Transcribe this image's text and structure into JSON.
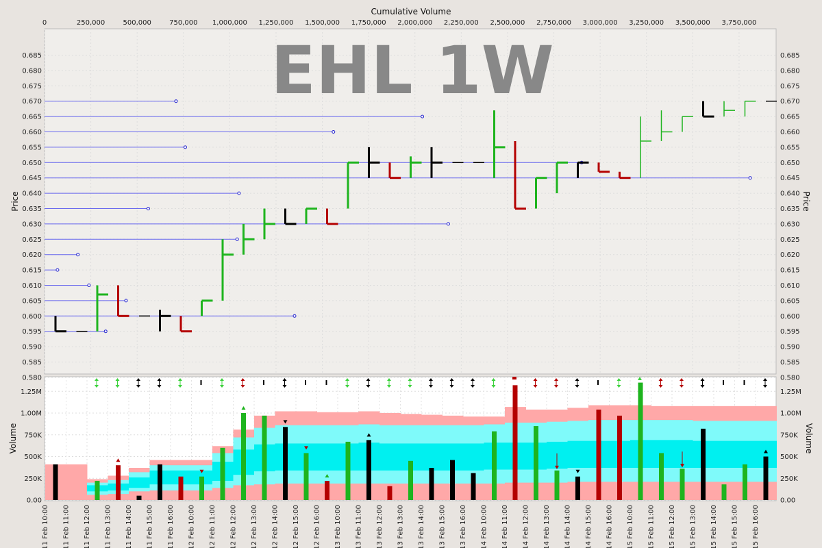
{
  "chart_data": [
    {
      "type": "bar",
      "subtype": "volume-at-price (equivolume cumulative)",
      "watermark": "EHL 1W",
      "top_axis_label": "Cumulative Volume",
      "ylabel": "Price",
      "ylim": [
        0.5755,
        0.6895
      ],
      "xlim": [
        0,
        3950000
      ],
      "x_ticks": [
        "0",
        "250,000",
        "500,000",
        "750,000",
        "1,000,000",
        "1,250,000",
        "1,500,000",
        "1,750,000",
        "2,000,000",
        "2,250,000",
        "2,500,000",
        "2,750,000",
        "3,000,000",
        "3,250,000",
        "3,500,000",
        "3,750,000"
      ],
      "x_tick_values": [
        0,
        250000,
        500000,
        750000,
        1000000,
        1250000,
        1500000,
        1750000,
        2000000,
        2250000,
        2500000,
        2750000,
        3000000,
        3250000,
        3500000,
        3750000
      ],
      "y_ticks": [
        "0.685",
        "0.680",
        "0.675",
        "0.670",
        "0.665",
        "0.660",
        "0.655",
        "0.650",
        "0.645",
        "0.640",
        "0.635",
        "0.630",
        "0.625",
        "0.620",
        "0.615",
        "0.610",
        "0.605",
        "0.600",
        "0.595",
        "0.590",
        "0.585",
        "0.580"
      ],
      "y_tick_values": [
        0.685,
        0.68,
        0.675,
        0.67,
        0.665,
        0.66,
        0.655,
        0.65,
        0.645,
        0.64,
        0.635,
        0.63,
        0.625,
        0.62,
        0.615,
        0.61,
        0.605,
        0.6,
        0.595,
        0.59,
        0.585,
        0.58
      ],
      "volume_at_price": [
        {
          "price": 0.67,
          "volume": 710000
        },
        {
          "price": 0.665,
          "volume": 2040000
        },
        {
          "price": 0.66,
          "volume": 1560000
        },
        {
          "price": 0.655,
          "volume": 760000
        },
        {
          "price": 0.65,
          "volume": 2900000
        },
        {
          "price": 0.645,
          "volume": 3810000
        },
        {
          "price": 0.64,
          "volume": 1050000
        },
        {
          "price": 0.635,
          "volume": 560000
        },
        {
          "price": 0.63,
          "volume": 2180000
        },
        {
          "price": 0.625,
          "volume": 1040000
        },
        {
          "price": 0.62,
          "volume": 180000
        },
        {
          "price": 0.615,
          "volume": 70000
        },
        {
          "price": 0.61,
          "volume": 240000
        },
        {
          "price": 0.605,
          "volume": 440000
        },
        {
          "price": 0.6,
          "volume": 1350000
        },
        {
          "price": 0.595,
          "volume": 330000
        }
      ]
    },
    {
      "type": "bar",
      "ylabel": "Volume",
      "ylim": [
        0,
        1400000
      ],
      "y_ticks": [
        "0.00",
        "250K",
        "500K",
        "750K",
        "1.00M",
        "1.25M"
      ],
      "y_tick_values": [
        0,
        250000,
        500000,
        750000,
        1000000,
        1250000
      ],
      "categories": [
        "11 Feb 10:00",
        "11 Feb 11:00",
        "11 Feb 12:00",
        "11 Feb 13:00",
        "11 Feb 14:00",
        "11 Feb 15:00",
        "11 Feb 16:00",
        "12 Feb 10:00",
        "12 Feb 11:00",
        "12 Feb 12:00",
        "12 Feb 13:00",
        "12 Feb 14:00",
        "12 Feb 15:00",
        "12 Feb 16:00",
        "13 Feb 10:00",
        "13 Feb 11:00",
        "13 Feb 12:00",
        "13 Feb 13:00",
        "13 Feb 14:00",
        "13 Feb 15:00",
        "13 Feb 16:00",
        "14 Feb 10:00",
        "14 Feb 11:00",
        "14 Feb 12:00",
        "14 Feb 13:00",
        "14 Feb 14:00",
        "14 Feb 15:00",
        "14 Feb 16:00",
        "15 Feb 10:00",
        "15 Feb 11:00",
        "15 Feb 12:00",
        "15 Feb 13:00",
        "15 Feb 14:00",
        "15 Feb 15:00",
        "15 Feb 16:00"
      ],
      "price_bars": [
        {
          "open": 0.6,
          "high": 0.6,
          "low": 0.595,
          "close": 0.595,
          "color": "black"
        },
        {
          "open": 0.595,
          "high": 0.595,
          "low": 0.595,
          "close": 0.595,
          "color": "black"
        },
        {
          "open": 0.595,
          "high": 0.61,
          "low": 0.595,
          "close": 0.607,
          "color": "green"
        },
        {
          "open": 0.61,
          "high": 0.61,
          "low": 0.6,
          "close": 0.6,
          "color": "red"
        },
        {
          "open": 0.6,
          "high": 0.6,
          "low": 0.6,
          "close": 0.6,
          "color": "black"
        },
        {
          "open": 0.6,
          "high": 0.602,
          "low": 0.595,
          "close": 0.6,
          "color": "black"
        },
        {
          "open": 0.6,
          "high": 0.6,
          "low": 0.595,
          "close": 0.595,
          "color": "red"
        },
        {
          "open": 0.6,
          "high": 0.605,
          "low": 0.6,
          "close": 0.605,
          "color": "green"
        },
        {
          "open": 0.605,
          "high": 0.625,
          "low": 0.605,
          "close": 0.62,
          "color": "green"
        },
        {
          "open": 0.62,
          "high": 0.63,
          "low": 0.62,
          "close": 0.625,
          "color": "green"
        },
        {
          "open": 0.625,
          "high": 0.635,
          "low": 0.625,
          "close": 0.63,
          "color": "green"
        },
        {
          "open": 0.635,
          "high": 0.635,
          "low": 0.63,
          "close": 0.63,
          "color": "black"
        },
        {
          "open": 0.63,
          "high": 0.635,
          "low": 0.63,
          "close": 0.635,
          "color": "green"
        },
        {
          "open": 0.635,
          "high": 0.635,
          "low": 0.63,
          "close": 0.63,
          "color": "red"
        },
        {
          "open": 0.635,
          "high": 0.65,
          "low": 0.635,
          "close": 0.65,
          "color": "green"
        },
        {
          "open": 0.655,
          "high": 0.655,
          "low": 0.645,
          "close": 0.65,
          "color": "black"
        },
        {
          "open": 0.65,
          "high": 0.65,
          "low": 0.645,
          "close": 0.645,
          "color": "red"
        },
        {
          "open": 0.645,
          "high": 0.652,
          "low": 0.645,
          "close": 0.65,
          "color": "green"
        },
        {
          "open": 0.645,
          "high": 0.655,
          "low": 0.645,
          "close": 0.65,
          "color": "black"
        },
        {
          "open": 0.65,
          "high": 0.65,
          "low": 0.65,
          "close": 0.65,
          "color": "black"
        },
        {
          "open": 0.65,
          "high": 0.65,
          "low": 0.65,
          "close": 0.65,
          "color": "black"
        },
        {
          "open": 0.65,
          "high": 0.667,
          "low": 0.645,
          "close": 0.655,
          "color": "green"
        },
        {
          "open": 0.657,
          "high": 0.657,
          "low": 0.635,
          "close": 0.635,
          "color": "red"
        },
        {
          "open": 0.635,
          "high": 0.645,
          "low": 0.635,
          "close": 0.645,
          "color": "green"
        },
        {
          "open": 0.64,
          "high": 0.65,
          "low": 0.64,
          "close": 0.65,
          "color": "green"
        },
        {
          "open": 0.645,
          "high": 0.65,
          "low": 0.645,
          "close": 0.65,
          "color": "black"
        },
        {
          "open": 0.65,
          "high": 0.65,
          "low": 0.647,
          "close": 0.647,
          "color": "red"
        },
        {
          "open": 0.647,
          "high": 0.647,
          "low": 0.645,
          "close": 0.645,
          "color": "red"
        },
        {
          "open": 0.645,
          "high": 0.665,
          "low": 0.645,
          "close": 0.657,
          "color": "green"
        },
        {
          "open": 0.657,
          "high": 0.667,
          "low": 0.657,
          "close": 0.66,
          "color": "green"
        },
        {
          "open": 0.66,
          "high": 0.665,
          "low": 0.66,
          "close": 0.665,
          "color": "green"
        },
        {
          "open": 0.67,
          "high": 0.67,
          "low": 0.665,
          "close": 0.665,
          "color": "black"
        },
        {
          "open": 0.667,
          "high": 0.67,
          "low": 0.665,
          "close": 0.667,
          "color": "green"
        },
        {
          "open": 0.665,
          "high": 0.67,
          "low": 0.665,
          "close": 0.67,
          "color": "green"
        },
        {
          "open": 0.67,
          "high": 0.67,
          "low": 0.67,
          "close": 0.67,
          "color": "black"
        }
      ],
      "volume": [
        410000,
        0,
        220000,
        400000,
        50000,
        410000,
        270000,
        270000,
        600000,
        1000000,
        970000,
        840000,
        540000,
        220000,
        670000,
        690000,
        160000,
        450000,
        370000,
        460000,
        310000,
        790000,
        1320000,
        850000,
        340000,
        270000,
        1040000,
        970000,
        1350000,
        540000,
        360000,
        820000,
        180000,
        410000,
        500000
      ],
      "volume_colors": [
        "black",
        "black",
        "green",
        "red",
        "black",
        "black",
        "red",
        "green",
        "green",
        "green",
        "green",
        "black",
        "green",
        "red",
        "green",
        "black",
        "red",
        "green",
        "black",
        "black",
        "black",
        "green",
        "red",
        "green",
        "green",
        "black",
        "red",
        "red",
        "green",
        "green",
        "green",
        "black",
        "green",
        "green",
        "black"
      ],
      "volume_markers": [
        "none",
        "none",
        "none",
        "up",
        "none",
        "none",
        "none",
        "down",
        "none",
        "up",
        "none",
        "down",
        "down",
        "up",
        "none",
        "up",
        "none",
        "none",
        "none",
        "none",
        "none",
        "none",
        "none",
        "none",
        "down-line",
        "down",
        "none",
        "none",
        "none",
        "none",
        "down-line",
        "none",
        "none",
        "none",
        "up"
      ],
      "marker_colors": [
        "",
        "",
        "",
        "red",
        "",
        "",
        "",
        "red",
        "",
        "green",
        "",
        "black",
        "red",
        "green",
        "",
        "black",
        "",
        "",
        "",
        "",
        "",
        "",
        "",
        "",
        "red",
        "black",
        "",
        "",
        "",
        "",
        "red",
        "",
        "",
        "",
        "black"
      ],
      "signals": [
        "none",
        "none",
        "both",
        "both",
        "both",
        "both",
        "both",
        "bar",
        "both",
        "both",
        "bar",
        "both",
        "bar",
        "bar",
        "both",
        "both",
        "both",
        "both",
        "both",
        "both",
        "both",
        "both",
        "stop",
        "both",
        "both",
        "both",
        "bar",
        "both",
        "up",
        "both",
        "both",
        "both",
        "bar",
        "bar",
        "both"
      ],
      "signal_colors": [
        "",
        "",
        "green",
        "green",
        "black",
        "black",
        "green",
        "black",
        "green",
        "red",
        "black",
        "black",
        "black",
        "black",
        "green",
        "black",
        "green",
        "green",
        "black",
        "black",
        "black",
        "green",
        "red",
        "red",
        "red",
        "black",
        "black",
        "green",
        "green",
        "red",
        "red",
        "black",
        "black",
        "black",
        "black"
      ],
      "band_outer_top": [
        410000,
        410000,
        240000,
        280000,
        370000,
        460000,
        460000,
        460000,
        620000,
        810000,
        970000,
        1020000,
        1020000,
        1010000,
        1010000,
        1020000,
        1000000,
        990000,
        980000,
        970000,
        960000,
        960000,
        1070000,
        1040000,
        1040000,
        1060000,
        1090000,
        1090000,
        1090000,
        1080000,
        1080000,
        1080000,
        1080000,
        1080000,
        1080000
      ],
      "band_inner_top": [
        0,
        0,
        200000,
        230000,
        320000,
        400000,
        400000,
        400000,
        540000,
        720000,
        830000,
        860000,
        860000,
        860000,
        860000,
        870000,
        860000,
        860000,
        860000,
        860000,
        860000,
        870000,
        890000,
        890000,
        900000,
        910000,
        920000,
        920000,
        920000,
        920000,
        920000,
        910000,
        910000,
        910000,
        910000
      ],
      "band_core_top": [
        0,
        0,
        170000,
        190000,
        260000,
        340000,
        340000,
        340000,
        440000,
        580000,
        640000,
        650000,
        650000,
        650000,
        650000,
        660000,
        650000,
        650000,
        650000,
        650000,
        650000,
        660000,
        660000,
        660000,
        670000,
        680000,
        680000,
        680000,
        690000,
        690000,
        690000,
        680000,
        680000,
        680000,
        680000
      ],
      "band_core_bottom": [
        0,
        0,
        100000,
        110000,
        140000,
        180000,
        180000,
        180000,
        220000,
        290000,
        330000,
        340000,
        340000,
        340000,
        340000,
        340000,
        340000,
        340000,
        340000,
        340000,
        340000,
        350000,
        350000,
        350000,
        360000,
        370000,
        370000,
        370000,
        370000,
        370000,
        370000,
        370000,
        370000,
        370000,
        370000
      ],
      "band_inner_bottom": [
        0,
        0,
        60000,
        70000,
        100000,
        110000,
        110000,
        110000,
        140000,
        170000,
        180000,
        190000,
        190000,
        190000,
        190000,
        190000,
        190000,
        190000,
        190000,
        190000,
        190000,
        190000,
        200000,
        200000,
        200000,
        210000,
        210000,
        210000,
        210000,
        210000,
        210000,
        210000,
        210000,
        210000,
        210000
      ]
    }
  ],
  "colors": {
    "background": "#e8e4e0",
    "plot_bg": "#f0eeeb",
    "volume_bg": "#ffffff",
    "green": "#1eb41e",
    "light_green": "#3cd23c",
    "red": "#b40000",
    "black": "#000000",
    "vap_line": "#6666ee",
    "band_outer": "#ffa8a8",
    "band_inner": "#7ffafa",
    "band_core": "#00f0f0",
    "watermark": "#888888"
  }
}
